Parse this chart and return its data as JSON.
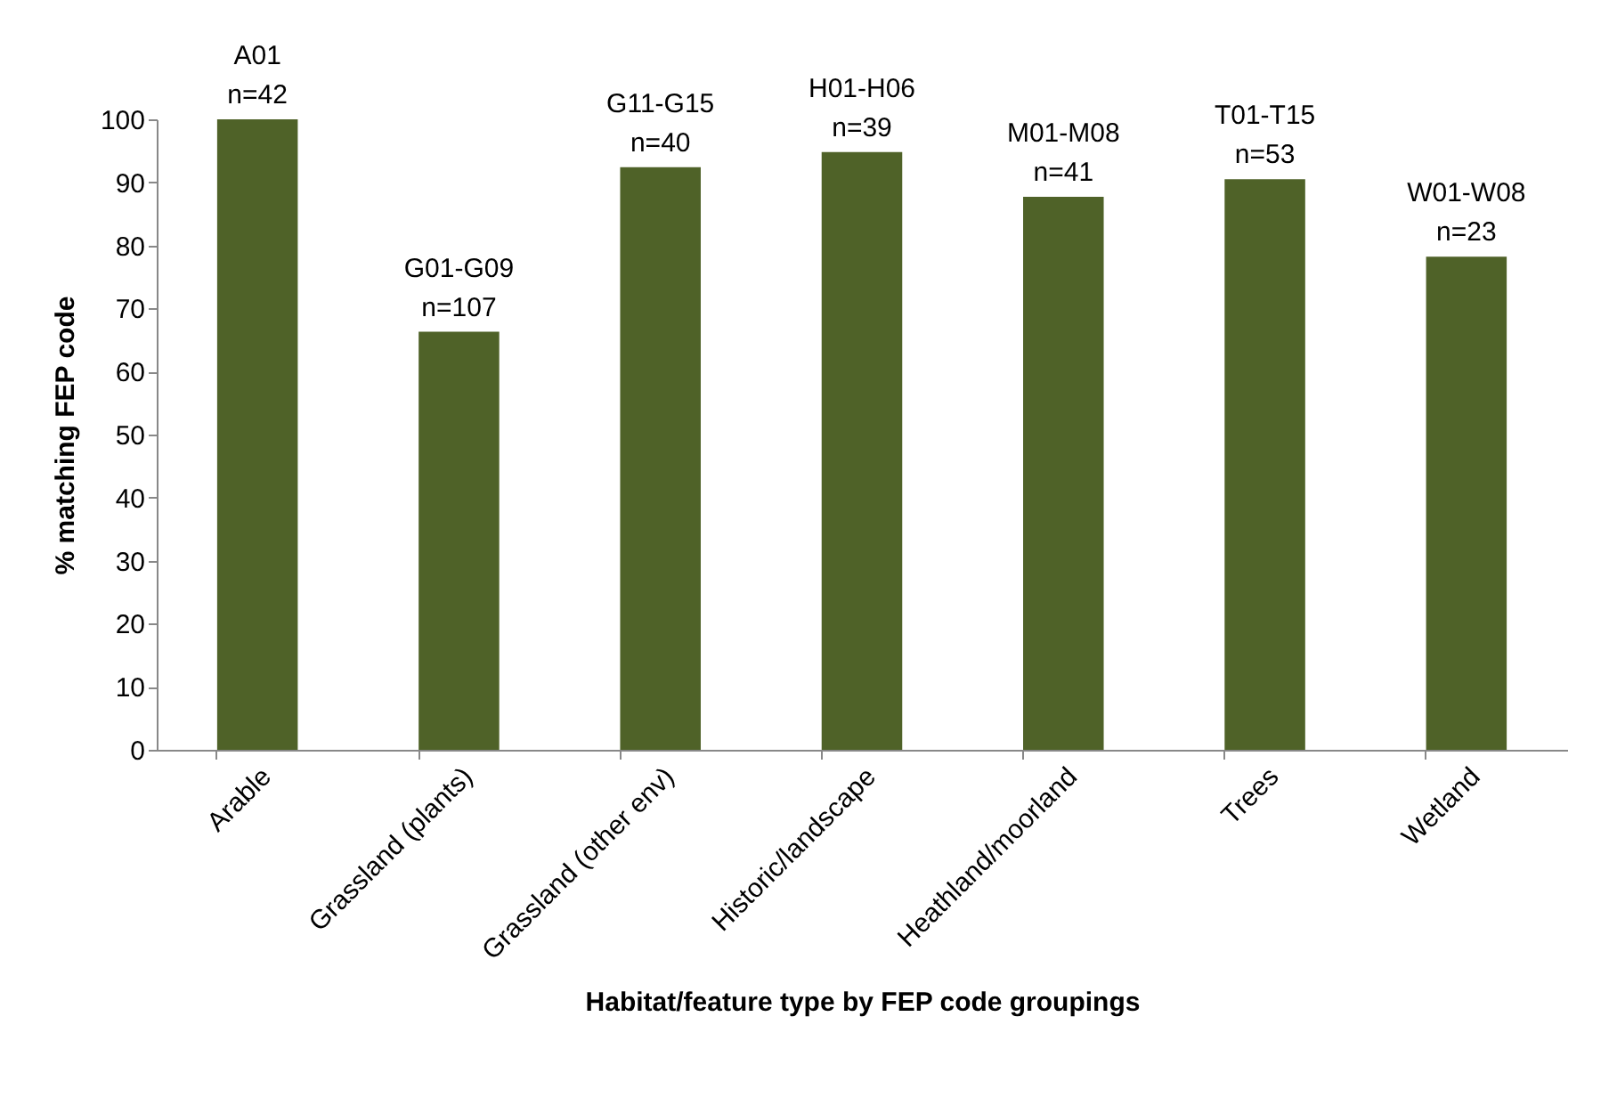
{
  "chart_data": {
    "type": "bar",
    "xlabel": "Habitat/feature type by FEP code groupings",
    "ylabel": "% matching FEP code",
    "categories": [
      "Arable",
      "Grassland (plants)",
      "Grassland (other env)",
      "Historic/landscape",
      "Heathland/moorland",
      "Trees",
      "Wetland"
    ],
    "values": [
      100,
      66.3,
      92.4,
      94.8,
      87.7,
      90.5,
      78.2
    ],
    "color": "#4f6228",
    "ylim": [
      0,
      100
    ],
    "yticks": [
      0,
      10,
      20,
      30,
      40,
      50,
      60,
      70,
      80,
      90,
      100
    ],
    "grid": false,
    "annotations": [
      {
        "text": "A01",
        "x": "Arable",
        "y": 100
      },
      {
        "text": "n=42",
        "x": "Arable",
        "y": 100
      },
      {
        "text": "G01-G09",
        "x": "Grassland (plants)",
        "y": 66.3
      },
      {
        "text": "n=107",
        "x": "Grassland (plants)",
        "y": 66.3
      },
      {
        "text": "G11-G15",
        "x": "Grassland (other env)",
        "y": 92.4
      },
      {
        "text": "n=40",
        "x": "Grassland (other env)",
        "y": 92.4
      },
      {
        "text": "H01-H06",
        "x": "Historic/landscape",
        "y": 94.8
      },
      {
        "text": "n=39",
        "x": "Historic/landscape",
        "y": 94.8
      },
      {
        "text": "M01-M08",
        "x": "Heathland/moorland",
        "y": 87.7
      },
      {
        "text": "n=41",
        "x": "Heathland/moorland",
        "y": 87.7
      },
      {
        "text": "T01-T15",
        "x": "Trees",
        "y": 90.5
      },
      {
        "text": "n=53",
        "x": "Trees",
        "y": 90.5
      },
      {
        "text": "W01-W08",
        "x": "Wetland",
        "y": 78.2
      },
      {
        "text": "n=23",
        "x": "Wetland",
        "y": 78.2
      }
    ]
  }
}
